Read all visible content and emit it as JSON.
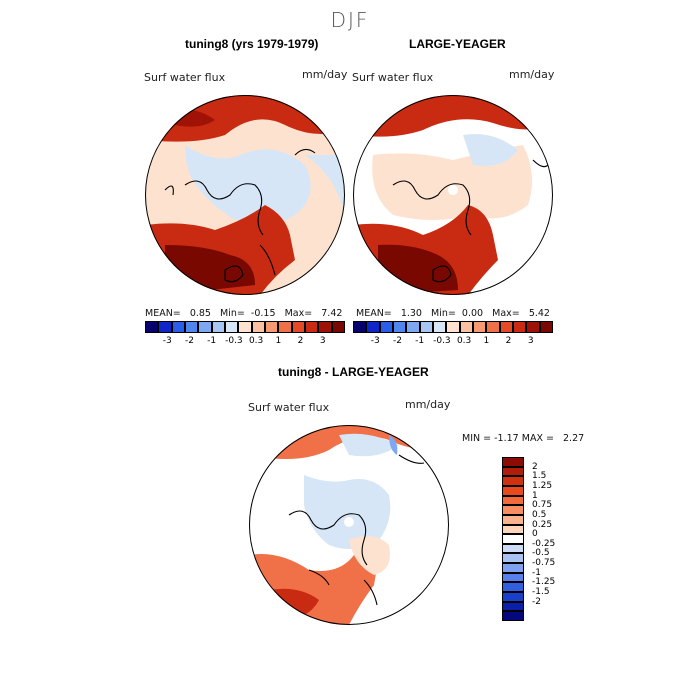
{
  "season": "DJF",
  "panels": [
    {
      "title": "tuning8 (yrs 1979-1979)",
      "variable": "Surf water flux",
      "units": "mm/day",
      "stats": {
        "mean_label": "MEAN=",
        "mean": "0.85",
        "min_label": "Min=",
        "min": "-0.15",
        "max_label": "Max=",
        "max": "7.42"
      }
    },
    {
      "title": "LARGE-YEAGER",
      "variable": "Surf water flux",
      "units": "mm/day",
      "stats": {
        "mean_label": "MEAN=",
        "mean": "1.30",
        "min_label": "Min=",
        "min": "0.00",
        "max_label": "Max=",
        "max": "5.42"
      }
    },
    {
      "title": "tuning8 - LARGE-YEAGER",
      "variable": "Surf water flux",
      "units": "mm/day",
      "stats": {
        "min_label": "MIN =",
        "min": "-1.17",
        "max_label": "MAX =",
        "max": "2.27"
      }
    }
  ],
  "colorbar_horizontal": {
    "labels": [
      "-3",
      "-2",
      "-1",
      "-0.3",
      "0.3",
      "1",
      "2",
      "3"
    ],
    "colors": [
      "#08006e",
      "#1026c8",
      "#2a5ee8",
      "#4f86f0",
      "#7ea8f2",
      "#a9c6f2",
      "#d6e6f7",
      "#fde3cf",
      "#fbc2a2",
      "#f79a72",
      "#f07048",
      "#e44a26",
      "#c92a12",
      "#a01206",
      "#780800"
    ]
  },
  "colorbar_vertical": {
    "labels": [
      "2",
      "1.5",
      "1.25",
      "1",
      "0.75",
      "0.5",
      "0.25",
      "0",
      "-0.25",
      "-0.5",
      "-0.75",
      "-1",
      "-1.25",
      "-1.5",
      "-2"
    ],
    "colors": [
      "#8a0c02",
      "#b01d08",
      "#d03210",
      "#e84a1e",
      "#f26a3a",
      "#f68e62",
      "#f9b48f",
      "#fcd5ba",
      "#ffffff",
      "#ccdcf4",
      "#a8c2f2",
      "#7ea2f0",
      "#5880ea",
      "#3060de",
      "#1840c8",
      "#0a20a8",
      "#04087c"
    ]
  }
}
